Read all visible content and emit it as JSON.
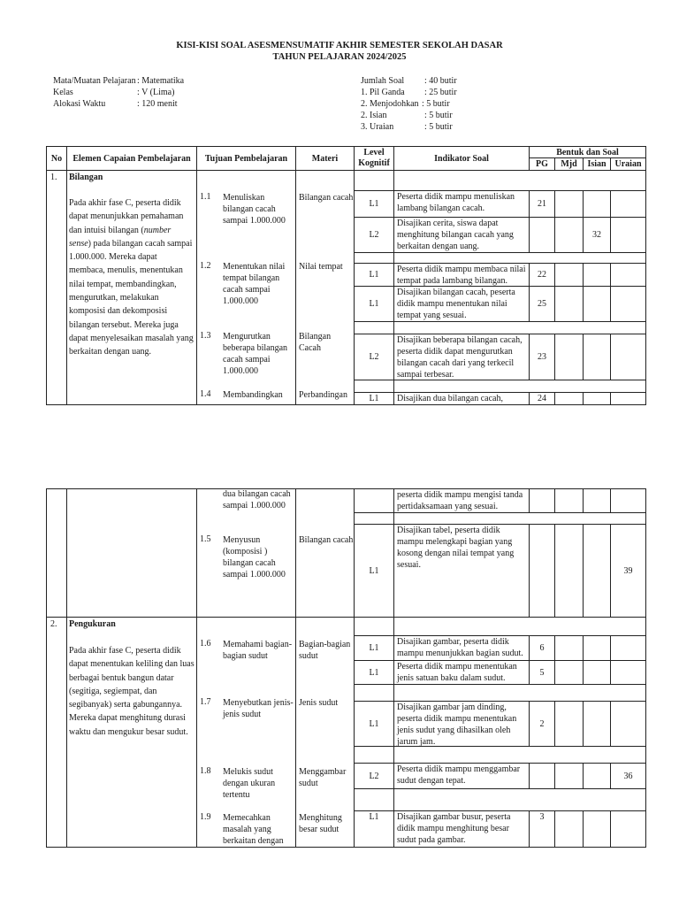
{
  "title": {
    "line1": "KISI-KISI SOAL ASESMENSUMATIF AKHIR SEMESTER SEKOLAH DASAR",
    "line2": "TAHUN PELAJARAN 2024/2025"
  },
  "info_left": [
    {
      "label": "Mata/Muatan Pelajaran",
      "value": ": Matematika"
    },
    {
      "label": "Kelas",
      "value": ": V (Lima)"
    },
    {
      "label": "Alokasi Waktu",
      "value": ": 120 menit"
    }
  ],
  "info_right": [
    {
      "label": "Jumlah Soal",
      "value": ":  40 butir"
    },
    {
      "label": " 1. Pil Ganda",
      "value": ":  25 butir"
    },
    {
      "label": " 2. Menjodohkan",
      "value": ":    5  butir"
    },
    {
      "label": " 2. Isian",
      "value": ":    5  butir"
    },
    {
      "label": " 3. Uraian",
      "value": ":    5 butir"
    }
  ],
  "header": {
    "no": "No",
    "elemen": "Elemen  Capaian Pembelajaran",
    "tujuan": "Tujuan Pembelajaran",
    "materi": "Materi",
    "level": "Level Kognitif",
    "indikator": "Indikator Soal",
    "bentuk": "Bentuk dan Soal",
    "pg": "PG",
    "mjd": "Mjd",
    "isian": "Isian",
    "uraian": "Uraian"
  },
  "elemen": [
    {
      "no": "1.",
      "title": "Bilangan",
      "text_before": "Pada akhir fase C, peserta didik dapat menunjukkan pemahaman dan intuisi bilangan (",
      "text_italic": "number sense",
      "text_after": ") pada bilangan cacah sampai 1.000.000. Mereka dapat membaca, menulis, menentukan nilai tempat, membandingkan, mengurutkan, melakukan komposisi dan dekomposisi bilangan tersebut. Mereka juga dapat menyelesaikan masalah yang berkaitan dengan uang."
    },
    {
      "no": "2.",
      "title": "Pengukuran",
      "text_before": "Pada akhir fase C, peserta didik dapat menentukan keliling dan luas berbagai bentuk bangun datar (segitiga, segiempat, dan segibanyak) serta gabungannya. Mereka dapat menghitung durasi waktu dan mengukur besar sudut.",
      "text_italic": "",
      "text_after": ""
    }
  ],
  "tujuan": [
    {
      "num": "1.1",
      "text": "Menuliskan bilangan cacah sampai 1.000.000",
      "materi": "Bilangan cacah"
    },
    {
      "num": "1.2",
      "text": "Menentukan nilai tempat bilangan cacah sampai 1.000.000",
      "materi": "Nilai tempat"
    },
    {
      "num": "1.3",
      "text": " Mengurutkan beberapa bilangan cacah sampai 1.000.000",
      "materi": "Bilangan Cacah"
    },
    {
      "num": "1.4",
      "text": "Membandingkan",
      "materi": "Perbandingan"
    },
    {
      "num": "",
      "text": "dua bilangan cacah sampai 1.000.000",
      "materi": ""
    },
    {
      "num": "1.5",
      "text": "Menyusun (komposisi ) bilangan cacah sampai 1.000.000",
      "materi": "Bilangan cacah"
    },
    {
      "num": "1.6",
      "text": "Memahami bagian-bagian sudut",
      "materi": "Bagian-bagian sudut"
    },
    {
      "num": "1.7",
      "text": "Menyebutkan jenis-jenis sudut",
      "materi": "Jenis sudut"
    },
    {
      "num": "1.8",
      "text": "Melukis sudut dengan ukuran tertentu",
      "materi": "Menggambar sudut"
    },
    {
      "num": "1.9",
      "text": "Memecahkan masalah yang berkaitan dengan",
      "materi": "Menghitung besar sudut"
    }
  ],
  "indicator_rows": [
    {
      "spacer": true
    },
    {
      "level": "L1",
      "indikator": "Peserta didik mampu menuliskan lambang bilangan cacah.",
      "pg": "21",
      "mjd": "",
      "isian": "",
      "uraian": ""
    },
    {
      "level": "L2",
      "indikator": "Disajikan cerita, siswa dapat menghitung bilangan cacah yang berkaitan dengan uang.",
      "pg": "",
      "mjd": "",
      "isian": "32",
      "uraian": ""
    },
    {
      "spacer": true
    },
    {
      "level": "L1",
      "indikator": "Peserta didik mampu membaca nilai tempat pada lambang bilangan.",
      "pg": "22",
      "mjd": "",
      "isian": "",
      "uraian": ""
    },
    {
      "level": "L1",
      "indikator": "Disajikan bilangan cacah, peserta didik mampu menentukan nilai tempat yang sesuai.",
      "pg": "25",
      "mjd": "",
      "isian": "",
      "uraian": ""
    },
    {
      "spacer": true
    },
    {
      "level": "L2",
      "indikator": "Disajikan beberapa bilangan cacah, peserta didik dapat mengurutkan bilangan cacah dari yang terkecil sampai terbesar.",
      "pg": "23",
      "mjd": "",
      "isian": "",
      "uraian": ""
    },
    {
      "spacer": true
    },
    {
      "level": "L1",
      "indikator": "Disajikan dua bilangan cacah,",
      "pg": "24",
      "mjd": "",
      "isian": "",
      "uraian": ""
    },
    {
      "level": "",
      "indikator": "peserta didik mampu mengisi tanda pertidaksamaan yang sesuai.",
      "pg": "",
      "mjd": "",
      "isian": "",
      "uraian": ""
    },
    {
      "spacer": true
    },
    {
      "level": "L1",
      "indikator": "Disajikan tabel, peserta didik mampu  melengkapi bagian yang kosong dengan nilai tempat yang sesuai.",
      "pg": "",
      "mjd": "",
      "isian": "",
      "uraian": "39"
    },
    {
      "spacer": true
    },
    {
      "level": "L1",
      "indikator": "Disajikan gambar, peserta didik mampu menunjukkan bagian sudut.",
      "pg": "6",
      "mjd": "",
      "isian": "",
      "uraian": ""
    },
    {
      "level": "L1",
      "indikator": "Peserta didik mampu menentukan jenis satuan baku dalam sudut.",
      "pg": "5",
      "mjd": "",
      "isian": "",
      "uraian": ""
    },
    {
      "spacer": true
    },
    {
      "level": "L1",
      "indikator": "Disajikan gambar jam dinding, peserta didik mampu menentukan jenis sudut yang dihasilkan oleh jarum jam.",
      "pg": "2",
      "mjd": "",
      "isian": "",
      "uraian": ""
    },
    {
      "spacer": true
    },
    {
      "level": "L2",
      "indikator": "Peserta didik mampu menggambar sudut  dengan tepat.",
      "pg": "",
      "mjd": "",
      "isian": "",
      "uraian": "36"
    },
    {
      "spacer": true
    },
    {
      "level": "L1",
      "indikator": "Disajikan gambar busur, peserta didik mampu menghitung besar sudut pada gambar.",
      "pg": "3",
      "mjd": "",
      "isian": "",
      "uraian": ""
    }
  ]
}
